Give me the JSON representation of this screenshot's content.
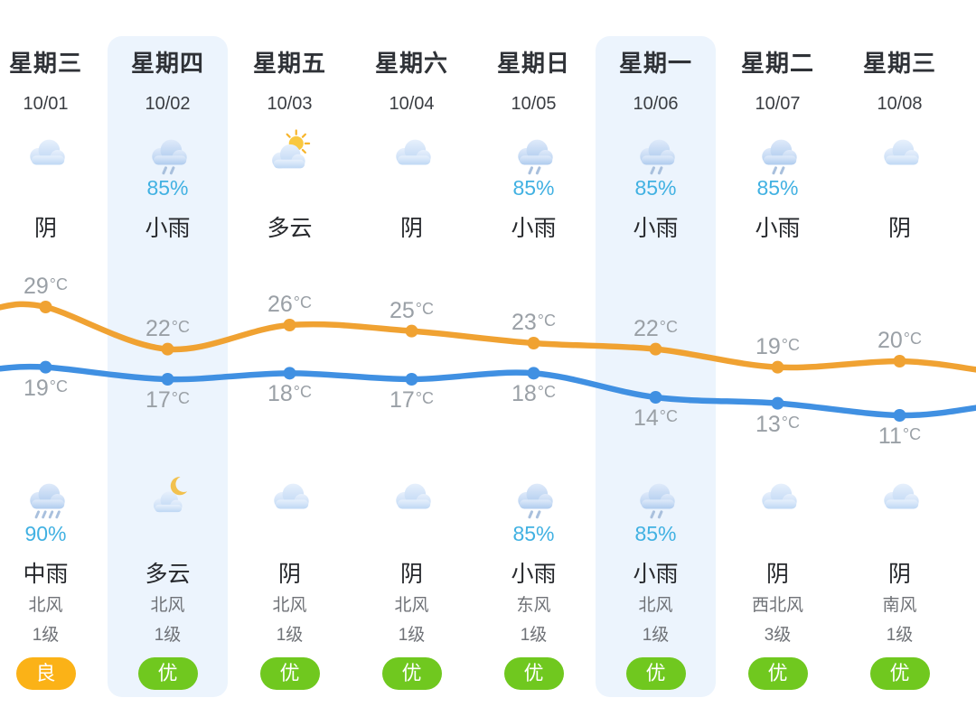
{
  "colors": {
    "high_line": "#f0a232",
    "low_line": "#4090e2",
    "precip_text": "#41b1e2",
    "highlight_bg": "#ecf4fd",
    "aqi_good_bg": "#fbb217",
    "aqi_excellent_bg": "#70c81f",
    "temp_label": "#9aa0a6"
  },
  "chart_data": {
    "type": "line",
    "categories": [
      "10/01",
      "10/02",
      "10/03",
      "10/04",
      "10/05",
      "10/06",
      "10/07",
      "10/08"
    ],
    "series": [
      {
        "name": "day-high-temp",
        "values": [
          29,
          22,
          26,
          25,
          23,
          22,
          19,
          20
        ],
        "color": "#f0a232"
      },
      {
        "name": "night-low-temp",
        "values": [
          19,
          17,
          18,
          17,
          18,
          14,
          13,
          11
        ],
        "color": "#4090e2"
      }
    ],
    "unit": "°C",
    "ylim": [
      10,
      30
    ],
    "grid": false,
    "legend": "none"
  },
  "columns": [
    {
      "day": "星期三",
      "date": "10/01",
      "day_icon": "cloud",
      "day_precip": "",
      "day_cond": "阴",
      "night_icon": "heavy-rain-cloud",
      "night_precip": "90%",
      "night_cond": "中雨",
      "wind_dir": "北风",
      "wind_level": "1级",
      "aqi": "良",
      "aqi_type": "good",
      "highlight": false
    },
    {
      "day": "星期四",
      "date": "10/02",
      "day_icon": "rain-cloud",
      "day_precip": "85%",
      "day_cond": "小雨",
      "night_icon": "moon-behind-cloud",
      "night_precip": "",
      "night_cond": "多云",
      "wind_dir": "北风",
      "wind_level": "1级",
      "aqi": "优",
      "aqi_type": "excellent",
      "highlight": true
    },
    {
      "day": "星期五",
      "date": "10/03",
      "day_icon": "sun-behind-cloud",
      "day_precip": "",
      "day_cond": "多云",
      "night_icon": "cloud",
      "night_precip": "",
      "night_cond": "阴",
      "wind_dir": "北风",
      "wind_level": "1级",
      "aqi": "优",
      "aqi_type": "excellent",
      "highlight": false
    },
    {
      "day": "星期六",
      "date": "10/04",
      "day_icon": "cloud",
      "day_precip": "",
      "day_cond": "阴",
      "night_icon": "cloud",
      "night_precip": "",
      "night_cond": "阴",
      "wind_dir": "北风",
      "wind_level": "1级",
      "aqi": "优",
      "aqi_type": "excellent",
      "highlight": false
    },
    {
      "day": "星期日",
      "date": "10/05",
      "day_icon": "rain-cloud",
      "day_precip": "85%",
      "day_cond": "小雨",
      "night_icon": "rain-cloud",
      "night_precip": "85%",
      "night_cond": "小雨",
      "wind_dir": "东风",
      "wind_level": "1级",
      "aqi": "优",
      "aqi_type": "excellent",
      "highlight": false
    },
    {
      "day": "星期一",
      "date": "10/06",
      "day_icon": "rain-cloud",
      "day_precip": "85%",
      "day_cond": "小雨",
      "night_icon": "rain-cloud",
      "night_precip": "85%",
      "night_cond": "小雨",
      "wind_dir": "北风",
      "wind_level": "1级",
      "aqi": "优",
      "aqi_type": "excellent",
      "highlight": true
    },
    {
      "day": "星期二",
      "date": "10/07",
      "day_icon": "rain-cloud",
      "day_precip": "85%",
      "day_cond": "小雨",
      "night_icon": "cloud",
      "night_precip": "",
      "night_cond": "阴",
      "wind_dir": "西北风",
      "wind_level": "3级",
      "aqi": "优",
      "aqi_type": "excellent",
      "highlight": false
    },
    {
      "day": "星期三",
      "date": "10/08",
      "day_icon": "cloud",
      "day_precip": "",
      "day_cond": "阴",
      "night_icon": "cloud",
      "night_precip": "",
      "night_cond": "阴",
      "wind_dir": "南风",
      "wind_level": "1级",
      "aqi": "优",
      "aqi_type": "excellent",
      "highlight": false
    }
  ]
}
